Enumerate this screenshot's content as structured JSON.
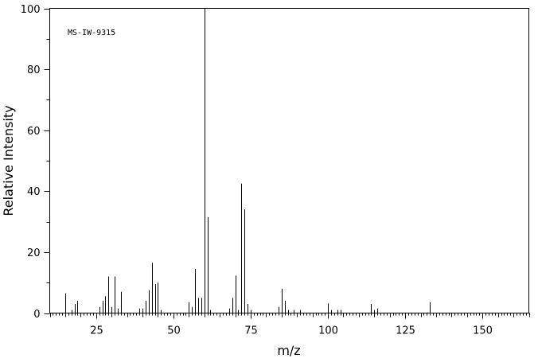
{
  "chart_data": {
    "type": "bar",
    "annotation": "MS-IW-9315",
    "xlabel": "m/z",
    "ylabel": "Relative Intensity",
    "xlim": [
      10,
      165
    ],
    "ylim": [
      0,
      100
    ],
    "x_ticks": [
      25,
      50,
      75,
      100,
      125,
      150
    ],
    "y_ticks": [
      0,
      20,
      40,
      60,
      80,
      100
    ],
    "x": [
      15,
      17,
      18,
      19,
      26,
      27,
      28,
      29,
      30,
      31,
      32,
      33,
      39,
      40,
      41,
      42,
      43,
      44,
      45,
      46,
      55,
      56,
      57,
      58,
      59,
      60,
      61,
      62,
      68,
      69,
      70,
      71,
      72,
      73,
      74,
      75,
      84,
      85,
      86,
      87,
      89,
      91,
      100,
      101,
      103,
      104,
      114,
      115,
      116,
      133
    ],
    "values": [
      6.5,
      1,
      3,
      4,
      2,
      4,
      5.5,
      12,
      2,
      12,
      1.5,
      7,
      1.5,
      1.5,
      4,
      7.5,
      16.5,
      9.5,
      10,
      1,
      3.5,
      2,
      14.5,
      5,
      5,
      100,
      31.5,
      1,
      1.5,
      5,
      12.3,
      1,
      42.5,
      34,
      3,
      1,
      2,
      8,
      4,
      1,
      1,
      1,
      3.2,
      1,
      1,
      1,
      3,
      1,
      1.5,
      3.6
    ]
  }
}
